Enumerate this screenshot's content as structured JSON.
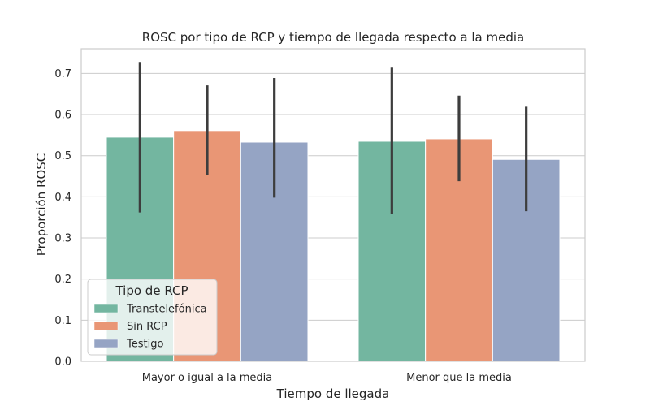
{
  "chart_data": {
    "type": "bar",
    "title": "ROSC por tipo de RCP y tiempo de llegada respecto a la media",
    "xlabel": "Tiempo de llegada",
    "ylabel": "Proporción ROSC",
    "categories": [
      "Mayor o igual a la media",
      "Menor que la media"
    ],
    "ylim": [
      0,
      0.76
    ],
    "yticks": [
      "0.0",
      "0.1",
      "0.2",
      "0.3",
      "0.4",
      "0.5",
      "0.6",
      "0.7"
    ],
    "grid": true,
    "legend": {
      "title": "Tipo de RCP",
      "placement": "lower-left"
    },
    "series": [
      {
        "name": "Transtelefónica",
        "color": "#73b6a0",
        "values": [
          0.545,
          0.535
        ],
        "ci_low": [
          0.362,
          0.358
        ],
        "ci_high": [
          0.728,
          0.714
        ]
      },
      {
        "name": "Sin RCP",
        "color": "#e99675",
        "values": [
          0.561,
          0.541
        ],
        "ci_low": [
          0.452,
          0.438
        ],
        "ci_high": [
          0.671,
          0.646
        ]
      },
      {
        "name": "Testigo",
        "color": "#95a4c4",
        "values": [
          0.533,
          0.491
        ],
        "ci_low": [
          0.398,
          0.365
        ],
        "ci_high": [
          0.689,
          0.619
        ]
      }
    ]
  }
}
